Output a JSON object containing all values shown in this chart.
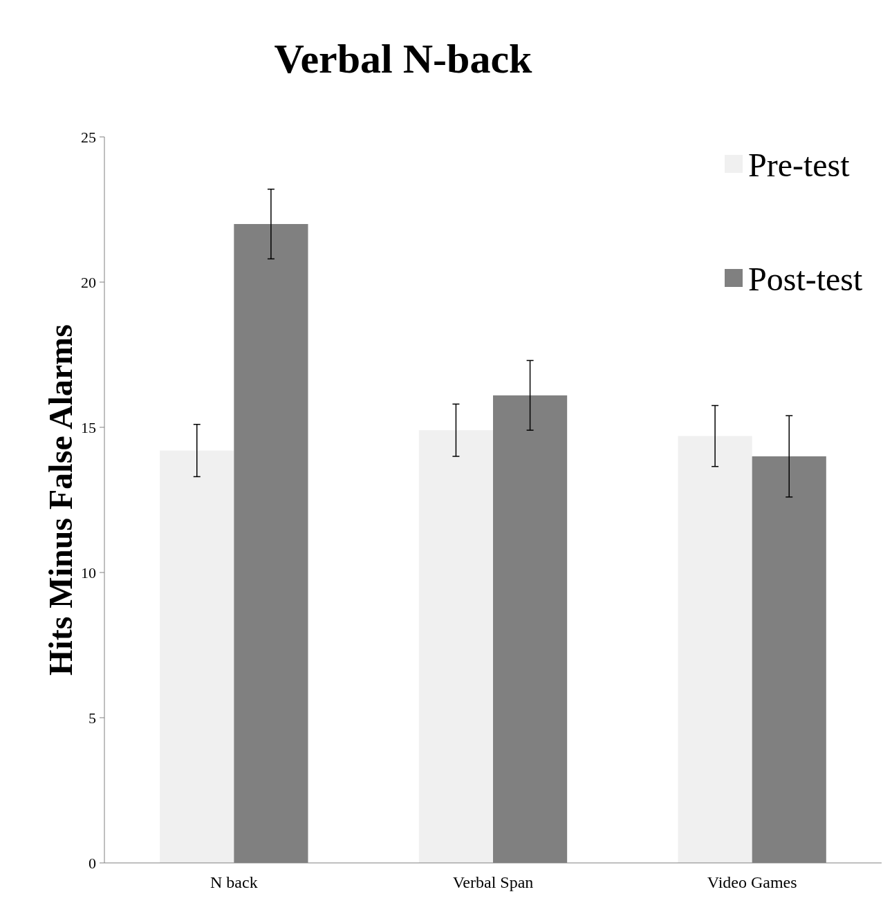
{
  "chart_data": {
    "type": "bar",
    "title": "Verbal N-back",
    "ylabel": "Hits Minus False Alarms",
    "categories": [
      "N back",
      "Verbal Span",
      "Video Games"
    ],
    "series": [
      {
        "name": "Pre-test",
        "color": "#f0f0f0",
        "values": [
          14.2,
          14.9,
          14.7
        ],
        "errors": [
          0.9,
          0.9,
          1.05
        ]
      },
      {
        "name": "Post-test",
        "color": "#808080",
        "values": [
          22,
          16.1,
          14
        ],
        "errors": [
          1.2,
          1.2,
          1.4
        ]
      }
    ],
    "ylim": [
      0,
      25
    ],
    "yticks": [
      0,
      5,
      10,
      15,
      20,
      25
    ],
    "grid": false,
    "legend": "top right"
  }
}
